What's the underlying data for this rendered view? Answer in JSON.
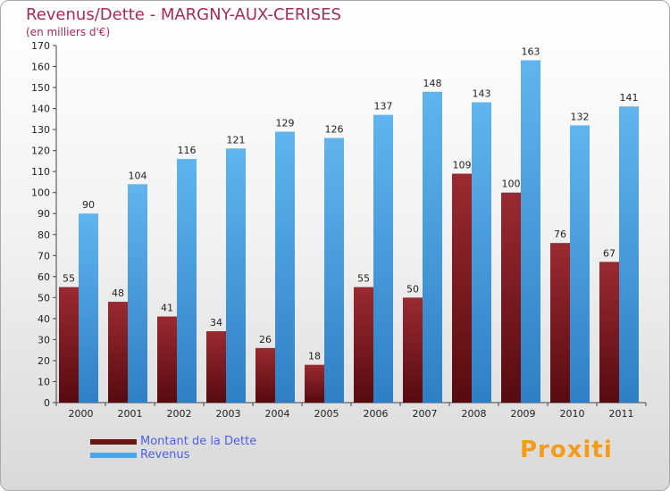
{
  "title": "Revenus/Dette - MARGNY-AUX-CERISES",
  "subtitle": "(en milliers d'€)",
  "logo": "Proxiti",
  "colors": {
    "debt": "#8b1e24",
    "revenue": "#4da6e8",
    "text": "#a52a5a",
    "legend_text": "#4d5fe6"
  },
  "legend": [
    {
      "label": "Montant de la Dette",
      "color": "#6a1414"
    },
    {
      "label": "Revenus",
      "color": "#4da6e8"
    }
  ],
  "chart_data": {
    "type": "bar",
    "title": "Revenus/Dette - MARGNY-AUX-CERISES",
    "subtitle": "(en milliers d'€)",
    "categories": [
      "2000",
      "2001",
      "2002",
      "2003",
      "2004",
      "2005",
      "2006",
      "2007",
      "2008",
      "2009",
      "2010",
      "2011"
    ],
    "series": [
      {
        "name": "Montant de la Dette",
        "values": [
          55,
          48,
          41,
          34,
          26,
          18,
          55,
          50,
          109,
          100,
          76,
          67
        ]
      },
      {
        "name": "Revenus",
        "values": [
          90,
          104,
          116,
          121,
          129,
          126,
          137,
          148,
          143,
          163,
          132,
          141
        ]
      }
    ],
    "ylim": [
      0,
      170
    ],
    "yticks": [
      0,
      10,
      20,
      30,
      40,
      50,
      60,
      70,
      80,
      90,
      100,
      110,
      120,
      130,
      140,
      150,
      160,
      170
    ],
    "xlabel": "",
    "ylabel": "",
    "grid": false,
    "legend_position": "bottom-left"
  }
}
